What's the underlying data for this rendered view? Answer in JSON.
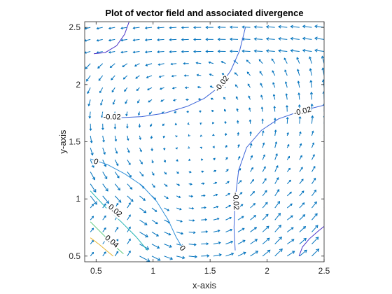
{
  "chart_data": {
    "type": "quiver-contour",
    "title": "Plot of vector field and associated divergence",
    "xlabel": "x-axis",
    "ylabel": "y-axis",
    "xlim": [
      0.4,
      2.5
    ],
    "ylim": [
      0.45,
      2.55
    ],
    "xticks": [
      0.5,
      1,
      1.5,
      2,
      2.5
    ],
    "xtick_labels": [
      "0.5",
      "1",
      "1.5",
      "2",
      "2.5"
    ],
    "yticks": [
      0.5,
      1,
      1.5,
      2,
      2.5
    ],
    "ytick_labels": [
      "0.5",
      "1",
      "1.5",
      "2",
      "2.5"
    ],
    "grid": false,
    "box": true,
    "quiver": {
      "color": "#0072bd",
      "x_range": [
        0.45,
        2.5
      ],
      "y_range": [
        0.5,
        2.5
      ],
      "nx": 20,
      "ny": 20,
      "vortex_center": [
        1.35,
        1.55
      ]
    },
    "contours": [
      {
        "level": -0.02,
        "label": "-0.02",
        "color": "#3b63d8",
        "points": [
          [
            0.58,
            1.72
          ],
          [
            0.7,
            1.71
          ],
          [
            0.9,
            1.72
          ],
          [
            1.1,
            1.75
          ],
          [
            1.3,
            1.81
          ],
          [
            1.45,
            1.88
          ],
          [
            1.58,
            1.98
          ],
          [
            1.68,
            2.12
          ],
          [
            1.76,
            2.3
          ],
          [
            1.81,
            2.5
          ]
        ]
      },
      {
        "level": -0.02,
        "label": "-0.02",
        "color": "#3b63d8",
        "points": [
          [
            1.72,
            0.55
          ],
          [
            1.71,
            0.75
          ],
          [
            1.72,
            1.0
          ],
          [
            1.75,
            1.25
          ],
          [
            1.82,
            1.45
          ],
          [
            1.95,
            1.6
          ],
          [
            2.1,
            1.7
          ],
          [
            2.3,
            1.77
          ],
          [
            2.5,
            1.82
          ]
        ]
      },
      {
        "level": -0.04,
        "label": "",
        "color": "#4a32c8",
        "points": [
          [
            0.48,
            2.27
          ],
          [
            0.58,
            2.28
          ],
          [
            0.68,
            2.34
          ],
          [
            0.75,
            2.44
          ],
          [
            0.79,
            2.55
          ]
        ]
      },
      {
        "level": -0.04,
        "label": "",
        "color": "#4a32c8",
        "points": [
          [
            2.28,
            0.5
          ],
          [
            2.31,
            0.58
          ],
          [
            2.37,
            0.65
          ],
          [
            2.45,
            0.72
          ],
          [
            2.5,
            0.76
          ]
        ]
      },
      {
        "level": 0,
        "label": "0",
        "color": "#2f8fd8",
        "points": [
          [
            0.45,
            1.35
          ],
          [
            0.6,
            1.3
          ],
          [
            0.75,
            1.22
          ],
          [
            0.9,
            1.12
          ],
          [
            1.03,
            0.98
          ],
          [
            1.13,
            0.82
          ],
          [
            1.2,
            0.67
          ],
          [
            1.27,
            0.55
          ]
        ]
      },
      {
        "level": 0.02,
        "label": "0.02",
        "color": "#1fb3b3",
        "points": [
          [
            0.45,
            1.07
          ],
          [
            0.58,
            0.93
          ],
          [
            0.72,
            0.8
          ],
          [
            0.85,
            0.67
          ],
          [
            0.95,
            0.55
          ]
        ]
      },
      {
        "level": 0.04,
        "label": "0.04",
        "color": "#5ac87a",
        "points": [
          [
            0.45,
            0.8
          ],
          [
            0.55,
            0.7
          ],
          [
            0.65,
            0.6
          ],
          [
            0.74,
            0.52
          ]
        ]
      },
      {
        "level": 0.06,
        "label": "",
        "color": "#e6b530",
        "points": [
          [
            0.45,
            0.66
          ],
          [
            0.53,
            0.6
          ],
          [
            0.6,
            0.54
          ],
          [
            0.65,
            0.5
          ]
        ]
      }
    ],
    "contour_labels": [
      {
        "text": "-0.02",
        "x": 0.64,
        "y": 1.72,
        "angle": 0
      },
      {
        "text": "-0.02",
        "x": 1.6,
        "y": 2.01,
        "angle": -52
      },
      {
        "text": "-0.02",
        "x": 2.31,
        "y": 1.77,
        "angle": -14
      },
      {
        "text": "-0.02",
        "x": 1.73,
        "y": 0.98,
        "angle": 88
      },
      {
        "text": "0",
        "x": 0.5,
        "y": 1.33,
        "angle": 22
      },
      {
        "text": "0",
        "x": 1.26,
        "y": 0.57,
        "angle": 55
      },
      {
        "text": "0.02",
        "x": 0.67,
        "y": 0.9,
        "angle": 40
      },
      {
        "text": "0.04",
        "x": 0.64,
        "y": 0.63,
        "angle": 40
      }
    ]
  }
}
